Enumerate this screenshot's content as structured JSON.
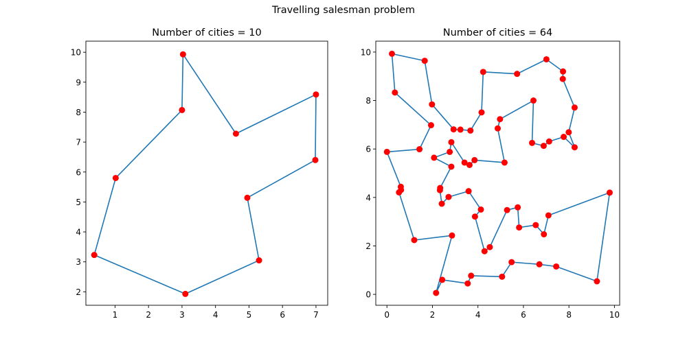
{
  "figure": {
    "suptitle": "Travelling salesman problem"
  },
  "colors": {
    "line": "#1f77b4",
    "marker": "#ff0000"
  },
  "chart_data": [
    {
      "type": "line",
      "title": "Number of cities = 10",
      "xlabel": "",
      "ylabel": "",
      "xlim": [
        0.13,
        7.35
      ],
      "ylim": [
        1.55,
        10.37
      ],
      "xticks": [
        1,
        2,
        3,
        4,
        5,
        6,
        7
      ],
      "yticks": [
        2,
        3,
        4,
        5,
        6,
        7,
        8,
        9,
        10
      ],
      "markers": "scatter",
      "route": [
        [
          3.03,
          9.93
        ],
        [
          3.0,
          8.07
        ],
        [
          1.02,
          5.8
        ],
        [
          0.38,
          3.23
        ],
        [
          3.1,
          1.93
        ],
        [
          5.3,
          3.05
        ],
        [
          4.95,
          5.14
        ],
        [
          6.98,
          6.4
        ],
        [
          7.0,
          8.59
        ],
        [
          4.61,
          7.28
        ],
        [
          3.03,
          9.93
        ]
      ]
    },
    {
      "type": "line",
      "title": "Number of cities = 64",
      "xlabel": "",
      "ylabel": "",
      "xlim": [
        -0.49,
        10.23
      ],
      "ylim": [
        -0.45,
        10.45
      ],
      "xticks": [
        0,
        2,
        4,
        6,
        8,
        10
      ],
      "yticks": [
        0,
        2,
        4,
        6,
        8,
        10
      ],
      "markers": "scatter",
      "route": [
        [
          0.22,
          9.93
        ],
        [
          1.66,
          9.64
        ],
        [
          1.98,
          7.84
        ],
        [
          2.93,
          6.81
        ],
        [
          3.23,
          6.8
        ],
        [
          3.67,
          6.76
        ],
        [
          4.16,
          7.51
        ],
        [
          4.23,
          9.18
        ],
        [
          5.72,
          9.1
        ],
        [
          7.01,
          9.7
        ],
        [
          7.74,
          9.2
        ],
        [
          7.73,
          8.89
        ],
        [
          8.25,
          7.71
        ],
        [
          7.99,
          6.69
        ],
        [
          8.25,
          6.07
        ],
        [
          7.77,
          6.5
        ],
        [
          7.13,
          6.31
        ],
        [
          6.89,
          6.13
        ],
        [
          6.38,
          6.25
        ],
        [
          6.44,
          8.0
        ],
        [
          4.97,
          7.23
        ],
        [
          4.87,
          6.85
        ],
        [
          5.17,
          5.44
        ],
        [
          3.85,
          5.54
        ],
        [
          3.63,
          5.34
        ],
        [
          3.41,
          5.44
        ],
        [
          2.83,
          6.28
        ],
        [
          2.76,
          5.88
        ],
        [
          2.07,
          5.64
        ],
        [
          2.83,
          5.27
        ],
        [
          2.34,
          4.39
        ],
        [
          2.33,
          4.3
        ],
        [
          2.41,
          3.74
        ],
        [
          2.71,
          4.02
        ],
        [
          3.59,
          4.26
        ],
        [
          4.13,
          3.5
        ],
        [
          3.87,
          3.21
        ],
        [
          4.29,
          1.78
        ],
        [
          4.52,
          1.95
        ],
        [
          5.28,
          3.48
        ],
        [
          5.75,
          3.59
        ],
        [
          5.81,
          2.76
        ],
        [
          6.54,
          2.86
        ],
        [
          6.9,
          2.48
        ],
        [
          7.1,
          3.26
        ],
        [
          9.79,
          4.2
        ],
        [
          9.23,
          0.54
        ],
        [
          7.44,
          1.15
        ],
        [
          6.7,
          1.24
        ],
        [
          5.48,
          1.33
        ],
        [
          5.06,
          0.73
        ],
        [
          3.7,
          0.77
        ],
        [
          3.55,
          0.45
        ],
        [
          2.43,
          0.6
        ],
        [
          2.16,
          0.06
        ],
        [
          2.86,
          2.43
        ],
        [
          1.2,
          2.24
        ],
        [
          0.53,
          4.21
        ],
        [
          0.62,
          4.31
        ],
        [
          0.61,
          4.44
        ],
        [
          0.0,
          5.88
        ],
        [
          1.43,
          5.99
        ],
        [
          1.94,
          6.98
        ],
        [
          0.35,
          8.33
        ],
        [
          0.22,
          9.93
        ]
      ]
    }
  ]
}
